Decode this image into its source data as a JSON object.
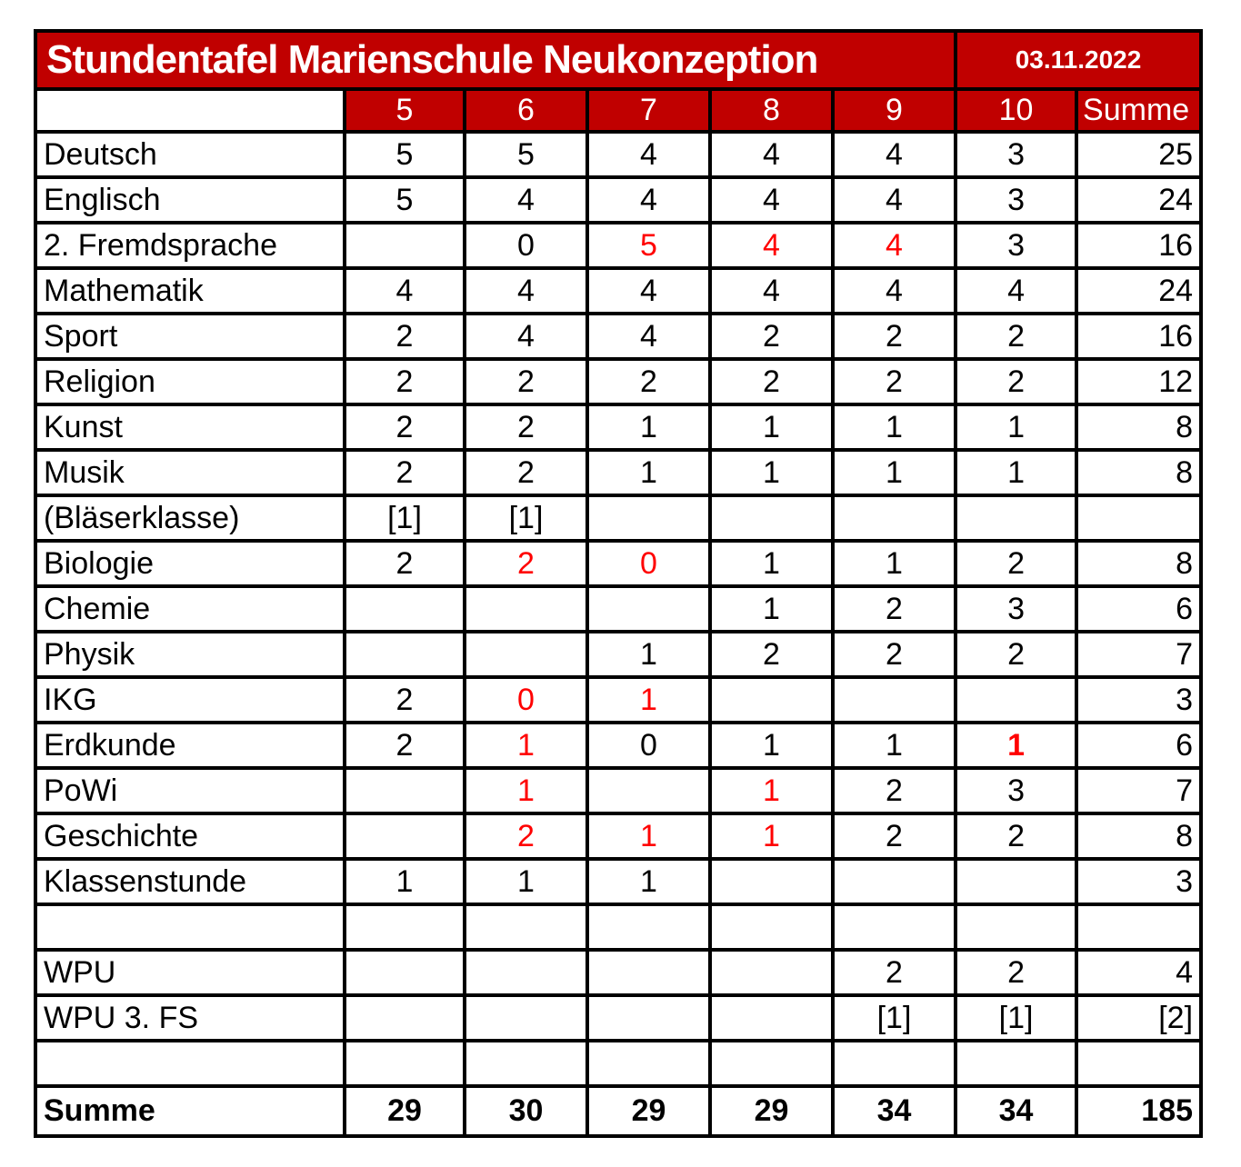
{
  "header": {
    "title": "Stundentafel Marienschule Neukonzeption",
    "date": "03.11.2022"
  },
  "columns": [
    "5",
    "6",
    "7",
    "8",
    "9",
    "10",
    "Summe"
  ],
  "rows": [
    {
      "label": "Deutsch",
      "cells": [
        "5",
        "5",
        "4",
        "4",
        "4",
        "3",
        "25"
      ]
    },
    {
      "label": "Englisch",
      "cells": [
        "5",
        "4",
        "4",
        "4",
        "4",
        "3",
        "24"
      ]
    },
    {
      "label": "2. Fremdsprache",
      "cells": [
        "",
        "0",
        {
          "v": "5",
          "red": true
        },
        {
          "v": "4",
          "red": true
        },
        {
          "v": "4",
          "red": true
        },
        "3",
        "16"
      ]
    },
    {
      "label": "Mathematik",
      "cells": [
        "4",
        "4",
        "4",
        "4",
        "4",
        "4",
        "24"
      ]
    },
    {
      "label": "Sport",
      "cells": [
        "2",
        "4",
        "4",
        "2",
        "2",
        "2",
        "16"
      ]
    },
    {
      "label": "Religion",
      "cells": [
        "2",
        "2",
        "2",
        "2",
        "2",
        "2",
        "12"
      ]
    },
    {
      "label": "Kunst",
      "cells": [
        "2",
        "2",
        "1",
        "1",
        "1",
        "1",
        "8"
      ]
    },
    {
      "label": "Musik",
      "cells": [
        "2",
        "2",
        "1",
        "1",
        "1",
        "1",
        "8"
      ]
    },
    {
      "label": "(Bläserklasse)",
      "cells": [
        "[1]",
        "[1]",
        "",
        "",
        "",
        "",
        ""
      ]
    },
    {
      "label": "Biologie",
      "cells": [
        "2",
        {
          "v": "2",
          "red": true
        },
        {
          "v": "0",
          "red": true
        },
        "1",
        "1",
        "2",
        "8"
      ]
    },
    {
      "label": "Chemie",
      "cells": [
        "",
        "",
        "",
        "1",
        "2",
        "3",
        "6"
      ]
    },
    {
      "label": "Physik",
      "cells": [
        "",
        "",
        "1",
        "2",
        "2",
        "2",
        "7"
      ]
    },
    {
      "label": "IKG",
      "cells": [
        "2",
        {
          "v": "0",
          "red": true
        },
        {
          "v": "1",
          "red": true
        },
        "",
        "",
        "",
        "3"
      ]
    },
    {
      "label": "Erdkunde",
      "cells": [
        "2",
        {
          "v": "1",
          "red": true
        },
        "0",
        "1",
        "1",
        {
          "v": "1",
          "red": true,
          "bold": true
        },
        "6"
      ]
    },
    {
      "label": "PoWi",
      "cells": [
        "",
        {
          "v": "1",
          "red": true
        },
        "",
        {
          "v": "1",
          "red": true
        },
        "2",
        "3",
        "7"
      ]
    },
    {
      "label": "Geschichte",
      "cells": [
        "",
        {
          "v": "2",
          "red": true
        },
        {
          "v": "1",
          "red": true
        },
        {
          "v": "1",
          "red": true
        },
        "2",
        "2",
        "8"
      ]
    },
    {
      "label": "Klassenstunde",
      "cells": [
        "1",
        "1",
        "1",
        "",
        "",
        "",
        "3"
      ]
    },
    {
      "label": "",
      "cells": [
        "",
        "",
        "",
        "",
        "",
        "",
        ""
      ]
    },
    {
      "label": "WPU",
      "cells": [
        "",
        "",
        "",
        "",
        "2",
        "2",
        "4"
      ]
    },
    {
      "label": "WPU 3. FS",
      "cells": [
        "",
        "",
        "",
        "",
        "[1]",
        "[1]",
        "[2]"
      ]
    },
    {
      "label": "",
      "cells": [
        "",
        "",
        "",
        "",
        "",
        "",
        ""
      ]
    },
    {
      "label": "Summe",
      "cells": [
        "29",
        "30",
        "29",
        "29",
        "34",
        "34",
        "185"
      ],
      "bold": true
    }
  ],
  "colors": {
    "header_red": "#C00000",
    "highlight_red": "#FF0000",
    "border_black": "#000000",
    "background_white": "#FFFFFF"
  }
}
